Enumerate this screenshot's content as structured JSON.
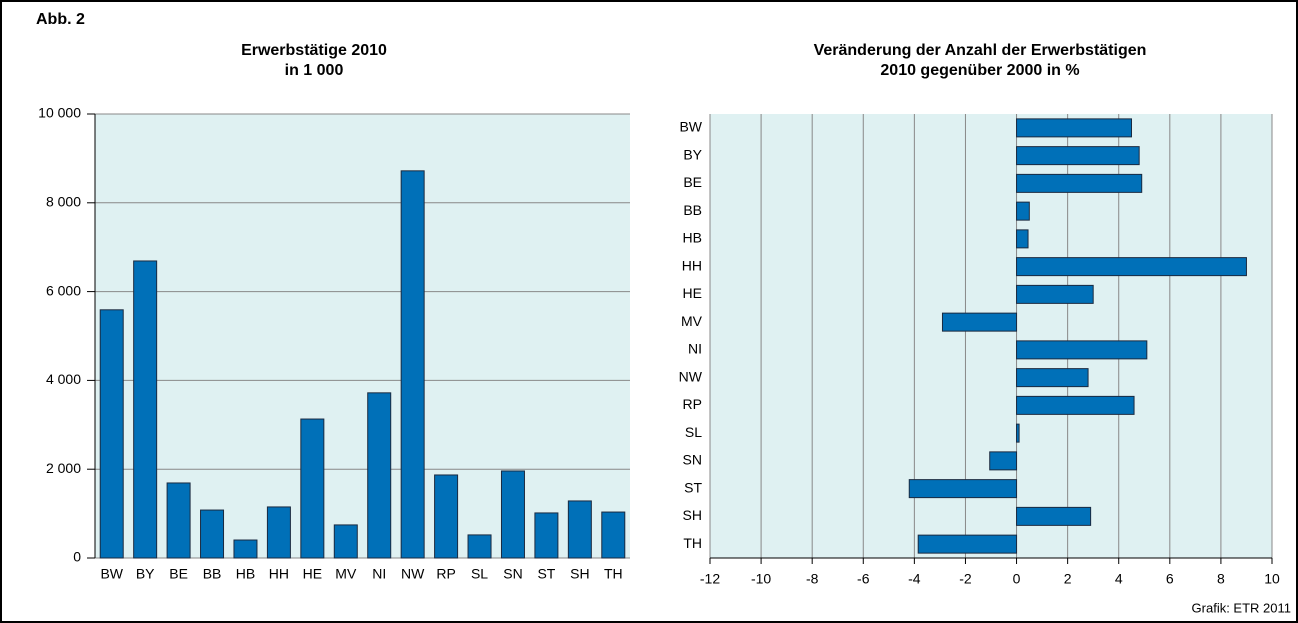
{
  "label": "Abb. 2",
  "source": "Grafik: ETR 2011",
  "chart_data": [
    {
      "type": "bar",
      "title": [
        "Erwerbstätige 2010",
        "in 1 000"
      ],
      "categories": [
        "BW",
        "BY",
        "BE",
        "BB",
        "HB",
        "HH",
        "HE",
        "MV",
        "NI",
        "NW",
        "RP",
        "SL",
        "SN",
        "ST",
        "SH",
        "TH"
      ],
      "values": [
        5590,
        6690,
        1690,
        1080,
        405,
        1150,
        3130,
        745,
        3720,
        8720,
        1870,
        520,
        1960,
        1015,
        1285,
        1035
      ],
      "color": "#0070b8",
      "ylim": [
        0,
        10000
      ],
      "yticks": [
        0,
        {
          "value": 2000,
          "label": "2 000"
        },
        {
          "value": 4000,
          "label": "4 000"
        },
        {
          "value": 6000,
          "label": "6 000"
        },
        {
          "value": 8000,
          "label": "8 000"
        },
        {
          "value": 10000,
          "label": "10 000"
        }
      ],
      "grid": true
    },
    {
      "type": "hbar",
      "title": [
        "Veränderung der Anzahl der Erwerbstätigen",
        "2010 gegenüber 2000 in %"
      ],
      "categories": [
        "BW",
        "BY",
        "BE",
        "BB",
        "HB",
        "HH",
        "HE",
        "MV",
        "NI",
        "NW",
        "RP",
        "SL",
        "SN",
        "ST",
        "SH",
        "TH"
      ],
      "values": [
        4.5,
        4.8,
        4.9,
        0.5,
        0.45,
        9.0,
        3.0,
        -2.9,
        5.1,
        2.8,
        4.6,
        0.1,
        -1.05,
        -4.2,
        2.9,
        -3.85
      ],
      "color": "#0070b8",
      "xlim": [
        -12,
        10
      ],
      "xticks": [
        -12,
        -10,
        -8,
        -6,
        -4,
        -2,
        0,
        2,
        4,
        6,
        8,
        10
      ],
      "grid": true
    }
  ]
}
